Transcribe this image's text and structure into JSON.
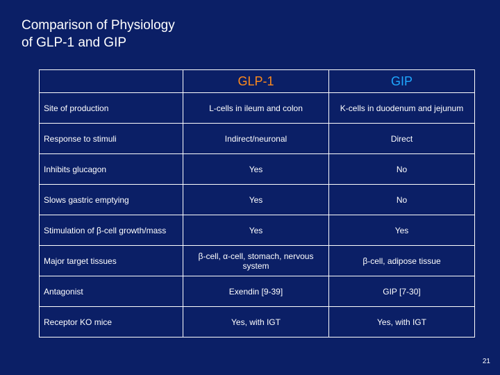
{
  "title": {
    "line1": "Comparison of Physiology",
    "line2": "of GLP-1 and GIP"
  },
  "table": {
    "headers": [
      "",
      "GLP-1",
      "GIP"
    ],
    "rows": [
      {
        "label": "Site of production",
        "glp1": "L-cells in ileum and colon",
        "gip": "K-cells in duodenum and jejunum"
      },
      {
        "label": "Response to stimuli",
        "glp1": "Indirect/neuronal",
        "gip": "Direct"
      },
      {
        "label": "Inhibits glucagon",
        "glp1": "Yes",
        "gip": "No"
      },
      {
        "label": "Slows gastric emptying",
        "glp1": "Yes",
        "gip": "No"
      },
      {
        "label": "Stimulation of β-cell growth/mass",
        "glp1": "Yes",
        "gip": "Yes"
      },
      {
        "label": "Major target tissues",
        "glp1": "β-cell, α-cell, stomach, nervous system",
        "gip": "β-cell, adipose tissue"
      },
      {
        "label": "Antagonist",
        "glp1": "Exendin [9-39]",
        "gip": "GIP [7-30]"
      },
      {
        "label": "Receptor KO mice",
        "glp1": "Yes, with IGT",
        "gip": "Yes, with IGT"
      }
    ]
  },
  "page_number": "21",
  "colors": {
    "background": "#0b1f66",
    "glp1_header": "#ff8a1c",
    "gip_header": "#1fa7ff"
  }
}
